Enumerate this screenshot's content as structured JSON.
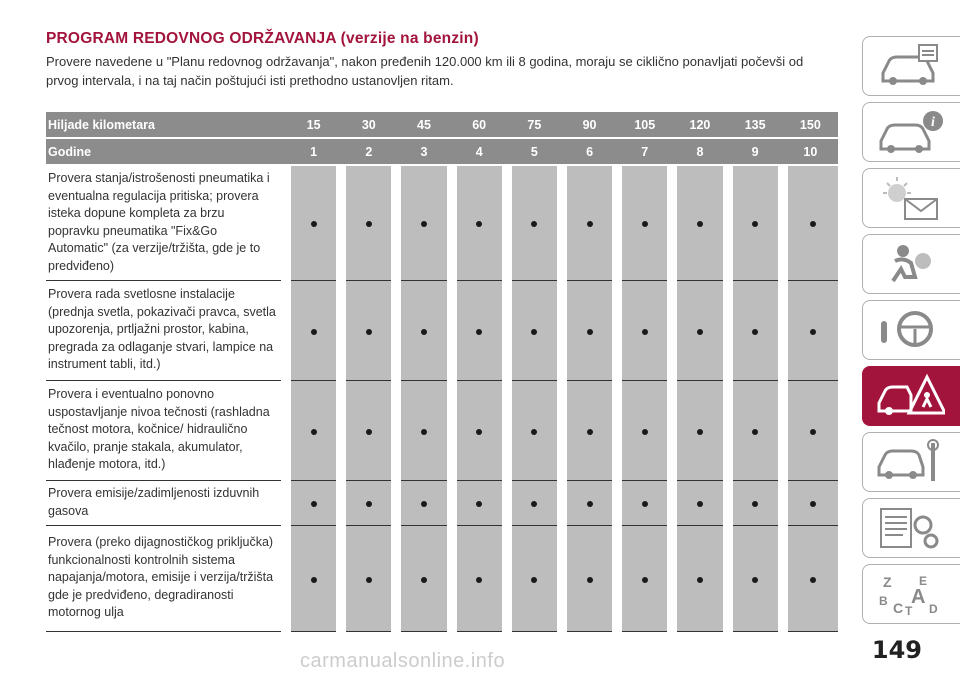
{
  "title": "PROGRAM REDOVNOG ODRŽAVANJA (verzije na benzin)",
  "intro": "Provere navedene u \"Planu redovnog održavanja\", nakon pređenih 120.000 km ili 8 godina, moraju se ciklično ponavljati počevši od prvog intervala, i na taj način poštujući isti prethodno ustanovljen ritam.",
  "table": {
    "km_label": "Hiljade kilometara",
    "km": [
      "15",
      "30",
      "45",
      "60",
      "75",
      "90",
      "105",
      "120",
      "135",
      "150"
    ],
    "years_label": "Godine",
    "years": [
      "1",
      "2",
      "3",
      "4",
      "5",
      "6",
      "7",
      "8",
      "9",
      "10"
    ],
    "rows": [
      {
        "text": "Provera stanja/istrošenosti pneumatika i eventualna regulacija pritiska; provera isteka dopune kompleta za brzu popravku pneumatika \"Fix&Go Automatic\" (za verzije/tržišta, gde je to predviđeno)",
        "marks": [
          1,
          1,
          1,
          1,
          1,
          1,
          1,
          1,
          1,
          1
        ]
      },
      {
        "text": "Provera rada svetlosne instalacije (prednja svetla, pokazivači pravca, svetla upozorenja, prtljažni prostor, kabina, pregrada za odlaganje stvari, lampice na instrument tabli, itd.)",
        "marks": [
          1,
          1,
          1,
          1,
          1,
          1,
          1,
          1,
          1,
          1
        ]
      },
      {
        "text": "Provera i eventualno ponovno uspostavljanje nivoa tečnosti (rashladna tečnost motora, kočnice/ hidraulično kvačilo, pranje stakala, akumulator, hlađenje motora, itd.)",
        "marks": [
          1,
          1,
          1,
          1,
          1,
          1,
          1,
          1,
          1,
          1
        ]
      },
      {
        "text": "Provera emisije/zadimljenosti izduvnih gasova",
        "marks": [
          1,
          1,
          1,
          1,
          1,
          1,
          1,
          1,
          1,
          1
        ]
      },
      {
        "text": "Provera (preko dijagnostičkog priključka) funkcionalnosti kontrolnih sistema napajanja/motora, emisije i verzija/tržišta gde je predviđeno, degradiranosti motornog ulja",
        "marks": [
          1,
          1,
          1,
          1,
          1,
          1,
          1,
          1,
          1,
          1
        ]
      }
    ]
  },
  "sidebar_tabs": [
    "car-info-icon",
    "car-info-icon",
    "warning-lights-icon",
    "airbag-icon",
    "steering-wheel-icon",
    "emergency-icon",
    "car-service-icon",
    "technical-data-icon",
    "index-icon"
  ],
  "accent": "#a3143c",
  "page_number": "149",
  "watermark": "carmanualsonline.info"
}
